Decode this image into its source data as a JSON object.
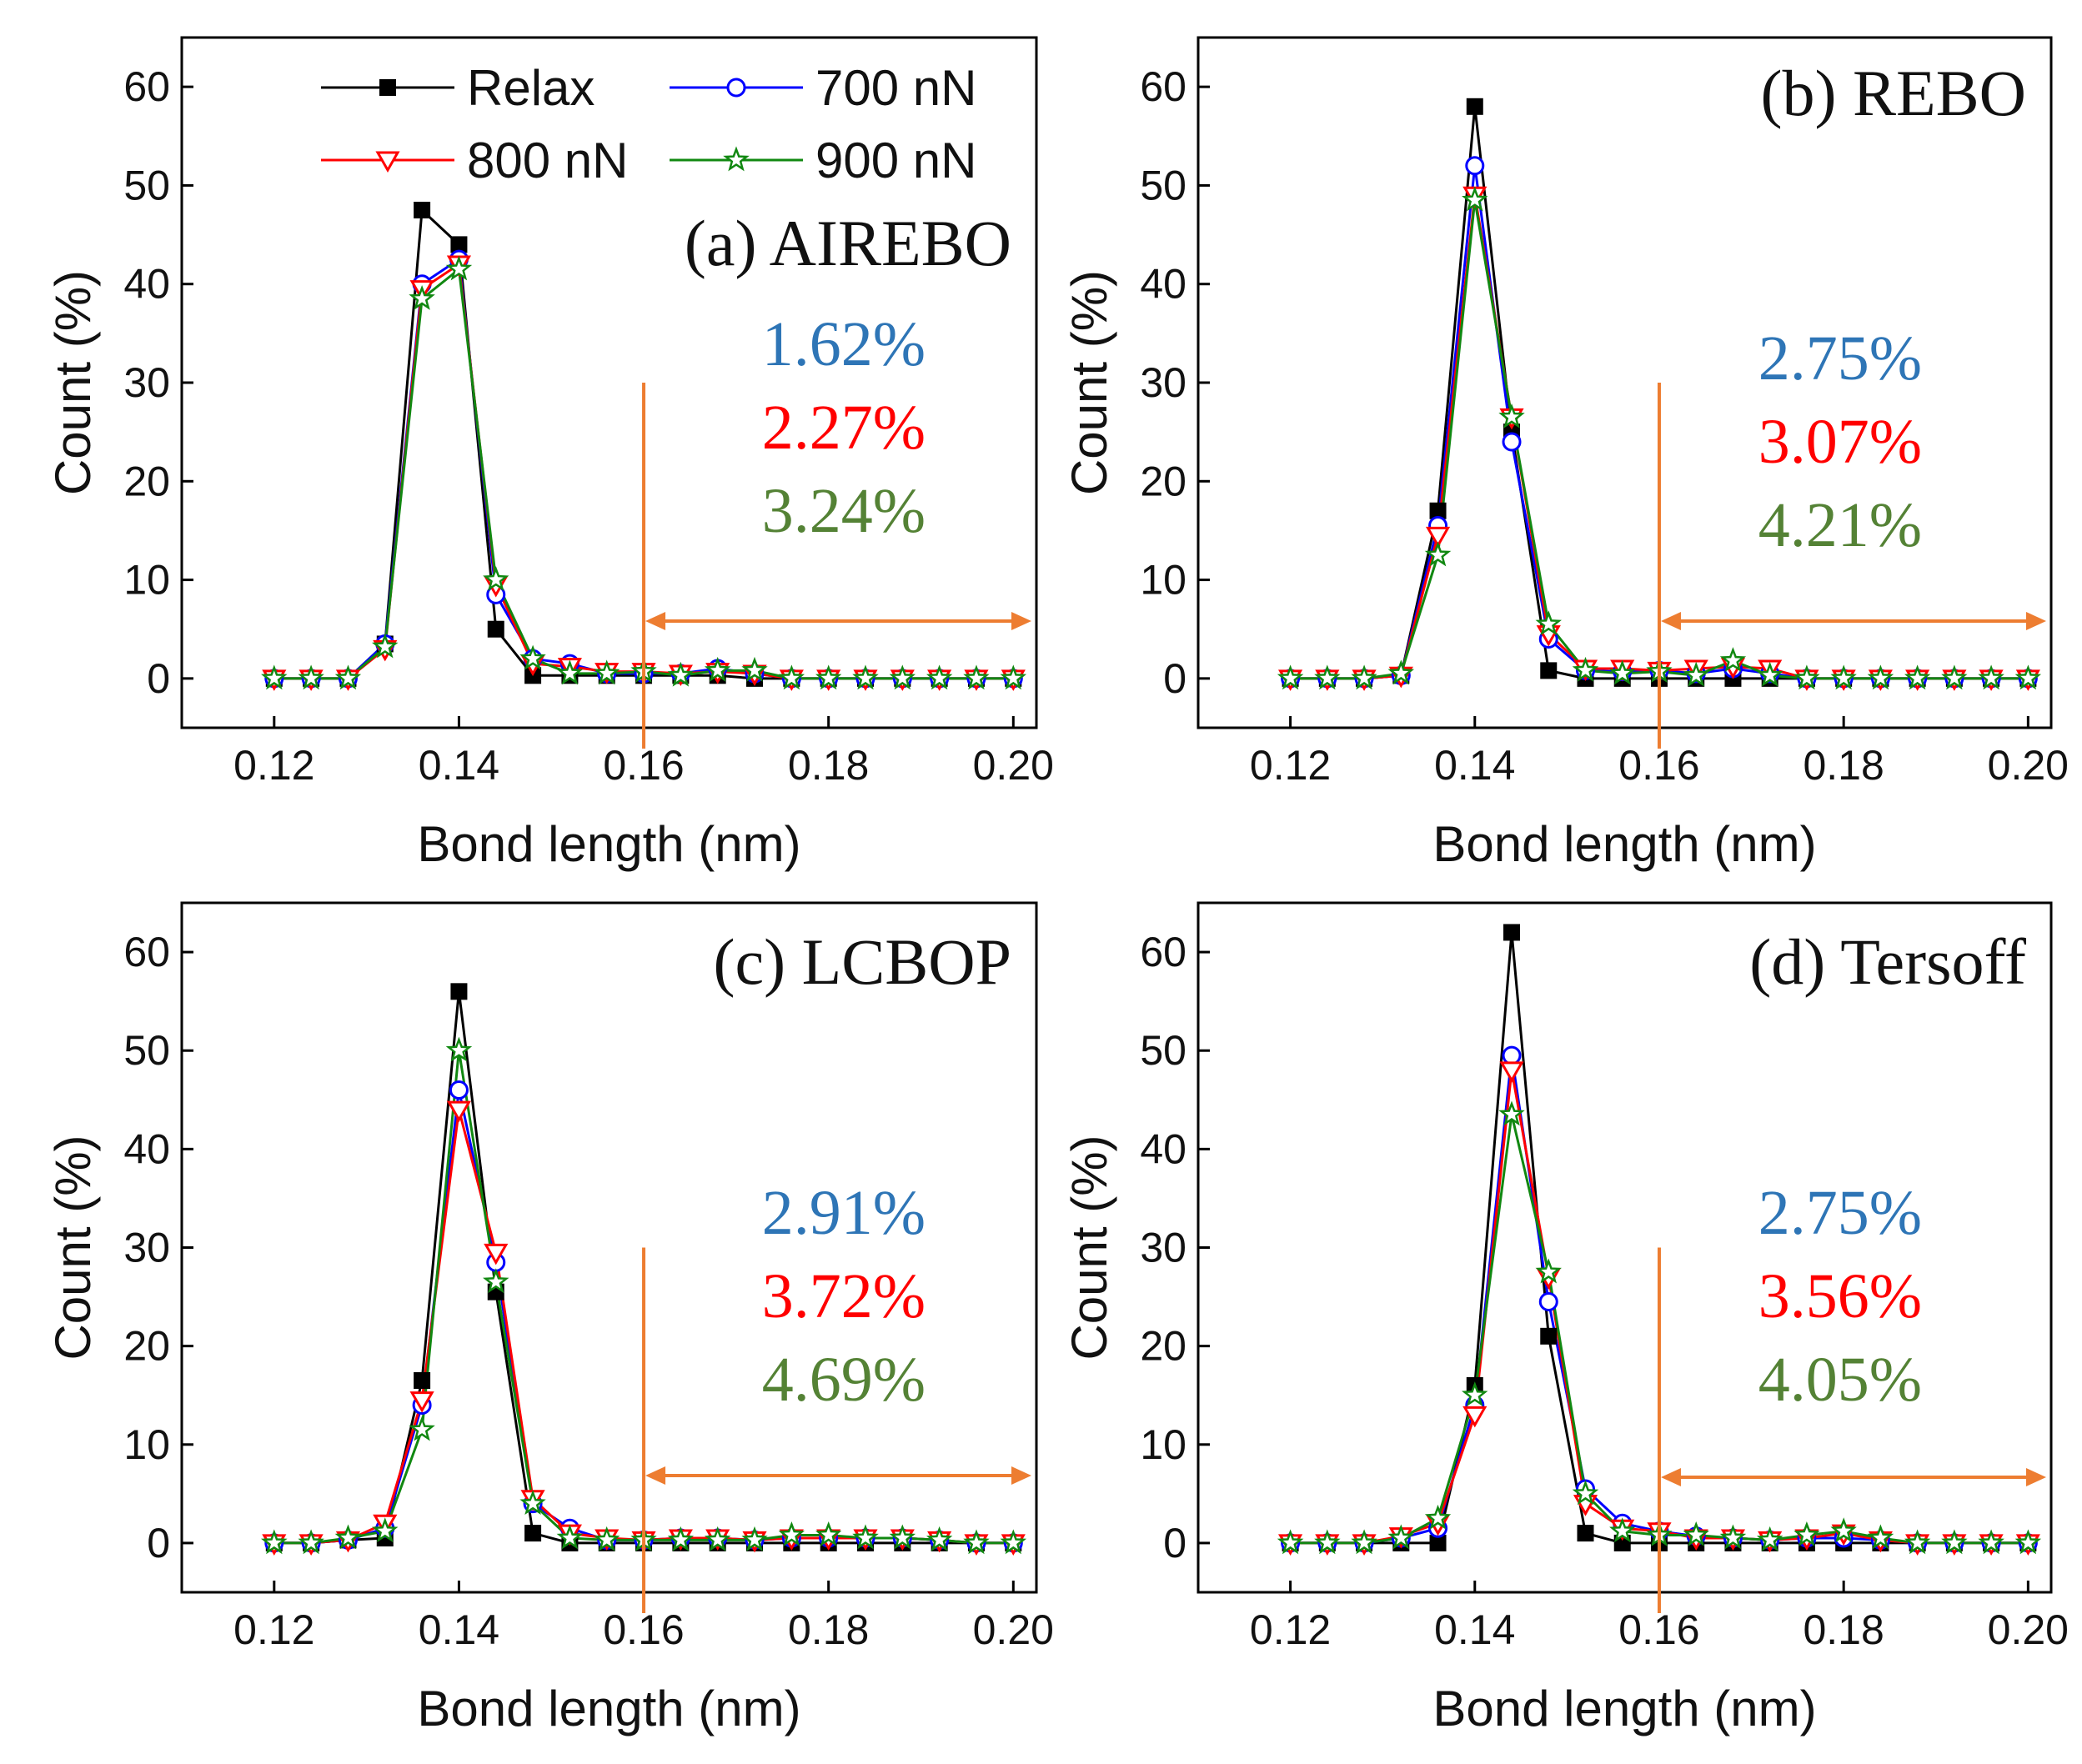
{
  "colors": {
    "relax": "#000000",
    "n700": "#0000ff",
    "n800": "#ff0000",
    "n900": "#118811",
    "threshold": "#ed7d31",
    "pct700": "#2e75b6",
    "pct800": "#ff0000",
    "pct900": "#548235"
  },
  "legend": {
    "relax": "Relax",
    "n700": "700 nN",
    "n800": "800 nN",
    "n900": "900 nN"
  },
  "chart_data": [
    {
      "type": "line",
      "title": "(a) AIREBO",
      "xlabel": "Bond length (nm)",
      "ylabel": "Count (%)",
      "xlim": [
        0.11,
        0.2025
      ],
      "ylim": [
        -5,
        65
      ],
      "xticks": [
        "0.12",
        "0.14",
        "0.16",
        "0.18",
        "0.20"
      ],
      "yticks": [
        "0",
        "10",
        "20",
        "30",
        "40",
        "50",
        "60"
      ],
      "threshold_x": 0.16,
      "percentages": [
        "1.62%",
        "2.27%",
        "3.24%"
      ],
      "x": [
        0.12,
        0.124,
        0.128,
        0.132,
        0.136,
        0.14,
        0.144,
        0.148,
        0.152,
        0.156,
        0.16,
        0.164,
        0.168,
        0.172,
        0.176,
        0.18,
        0.184,
        0.188,
        0.192,
        0.196,
        0.2
      ],
      "series": [
        {
          "name": "Relax",
          "values": [
            0,
            0,
            0,
            3.5,
            47.5,
            44,
            5,
            0.3,
            0.3,
            0.3,
            0.3,
            0.3,
            0.3,
            0,
            0,
            0,
            0,
            0,
            0,
            0,
            0
          ]
        },
        {
          "name": "700 nN",
          "values": [
            0,
            0,
            0,
            3.5,
            40,
            42.5,
            8.5,
            2,
            1.5,
            0.5,
            0.5,
            0.5,
            1,
            0.5,
            0,
            0,
            0,
            0,
            0,
            0,
            0
          ]
        },
        {
          "name": "800 nN",
          "values": [
            0,
            0,
            0,
            3,
            39.5,
            42,
            9.5,
            1.5,
            1.2,
            0.7,
            0.7,
            0.5,
            0.7,
            0.5,
            0,
            0,
            0,
            0,
            0,
            0,
            0
          ]
        },
        {
          "name": "900 nN",
          "values": [
            0,
            0,
            0,
            3.2,
            38.5,
            41.5,
            10,
            2,
            0.5,
            0.5,
            0.7,
            0.3,
            0.8,
            0.8,
            0,
            0,
            0,
            0,
            0,
            0,
            0
          ]
        }
      ]
    },
    {
      "type": "line",
      "title": "(b) REBO",
      "xlabel": "Bond length (nm)",
      "ylabel": "Count (%)",
      "xlim": [
        0.11,
        0.2025
      ],
      "ylim": [
        -5,
        65
      ],
      "xticks": [
        "0.12",
        "0.14",
        "0.16",
        "0.18",
        "0.20"
      ],
      "yticks": [
        "0",
        "10",
        "20",
        "30",
        "40",
        "50",
        "60"
      ],
      "threshold_x": 0.16,
      "percentages": [
        "2.75%",
        "3.07%",
        "4.21%"
      ],
      "x": [
        0.12,
        0.124,
        0.128,
        0.132,
        0.136,
        0.14,
        0.144,
        0.148,
        0.152,
        0.156,
        0.16,
        0.164,
        0.168,
        0.172,
        0.176,
        0.18,
        0.184,
        0.188,
        0.192,
        0.196,
        0.2
      ],
      "series": [
        {
          "name": "Relax",
          "values": [
            0,
            0,
            0,
            0.3,
            17,
            58,
            25,
            0.8,
            0,
            0,
            0,
            0,
            0,
            0,
            0,
            0,
            0,
            0,
            0,
            0,
            0
          ]
        },
        {
          "name": "700 nN",
          "values": [
            0,
            0,
            0,
            0.3,
            15.5,
            52,
            24,
            4,
            0.8,
            0.7,
            0.8,
            0.5,
            1,
            0.5,
            0,
            0,
            0,
            0,
            0,
            0,
            0
          ]
        },
        {
          "name": "800 nN",
          "values": [
            0,
            0,
            0,
            0.3,
            14.5,
            49,
            26.5,
            4.5,
            1,
            1,
            0.8,
            1,
            1.2,
            1,
            0,
            0,
            0,
            0,
            0,
            0,
            0
          ]
        },
        {
          "name": "900 nN",
          "values": [
            0,
            0,
            0,
            0.5,
            12.5,
            48.5,
            26.5,
            5.5,
            0.8,
            0.5,
            0.7,
            0.3,
            1.8,
            0.3,
            0,
            0,
            0,
            0,
            0,
            0,
            0
          ]
        }
      ]
    },
    {
      "type": "line",
      "title": "(c) LCBOP",
      "xlabel": "Bond length (nm)",
      "ylabel": "Count (%)",
      "xlim": [
        0.11,
        0.2025
      ],
      "ylim": [
        -5,
        65
      ],
      "xticks": [
        "0.12",
        "0.14",
        "0.16",
        "0.18",
        "0.20"
      ],
      "yticks": [
        "0",
        "10",
        "20",
        "30",
        "40",
        "50",
        "60"
      ],
      "threshold_x": 0.16,
      "percentages": [
        "2.91%",
        "3.72%",
        "4.69%"
      ],
      "x": [
        0.12,
        0.124,
        0.128,
        0.132,
        0.136,
        0.14,
        0.144,
        0.148,
        0.152,
        0.156,
        0.16,
        0.164,
        0.168,
        0.172,
        0.176,
        0.18,
        0.184,
        0.188,
        0.192,
        0.196,
        0.2
      ],
      "series": [
        {
          "name": "Relax",
          "values": [
            0,
            0,
            0.3,
            0.5,
            16.5,
            56,
            25.5,
            1,
            0,
            0,
            0,
            0,
            0,
            0,
            0,
            0,
            0,
            0,
            0,
            0,
            0
          ]
        },
        {
          "name": "700 nN",
          "values": [
            0,
            0,
            0.3,
            1.5,
            14,
            46,
            28.5,
            4,
            1.5,
            0.3,
            0.3,
            0.5,
            0.5,
            0.3,
            0.5,
            0.5,
            0.5,
            0.5,
            0.3,
            0,
            0
          ]
        },
        {
          "name": "800 nN",
          "values": [
            0,
            0,
            0.3,
            2,
            14.5,
            44,
            29.5,
            4.5,
            1,
            0.5,
            0.3,
            0.5,
            0.5,
            0.3,
            0.5,
            0.5,
            0.5,
            0.5,
            0.3,
            0,
            0
          ]
        },
        {
          "name": "900 nN",
          "values": [
            0,
            0,
            0.5,
            1.2,
            11.5,
            50,
            26.5,
            4,
            0.5,
            0.3,
            0.3,
            0.3,
            0.3,
            0.3,
            0.8,
            0.8,
            0.5,
            0.5,
            0.3,
            0,
            0
          ]
        }
      ]
    },
    {
      "type": "line",
      "title": "(d) Tersoff",
      "xlabel": "Bond length (nm)",
      "ylabel": "Count (%)",
      "xlim": [
        0.11,
        0.2025
      ],
      "ylim": [
        -5,
        65
      ],
      "xticks": [
        "0.12",
        "0.14",
        "0.16",
        "0.18",
        "0.20"
      ],
      "yticks": [
        "0",
        "10",
        "20",
        "30",
        "40",
        "50",
        "60"
      ],
      "threshold_x": 0.16,
      "percentages": [
        "2.75%",
        "3.56%",
        "4.05%"
      ],
      "x": [
        0.12,
        0.124,
        0.128,
        0.132,
        0.136,
        0.14,
        0.144,
        0.148,
        0.152,
        0.156,
        0.16,
        0.164,
        0.168,
        0.172,
        0.176,
        0.18,
        0.184,
        0.188,
        0.192,
        0.196,
        0.2
      ],
      "series": [
        {
          "name": "Relax",
          "values": [
            0,
            0,
            0,
            0,
            0,
            16,
            62,
            21,
            1,
            0,
            0,
            0,
            0,
            0,
            0,
            0,
            0,
            0,
            0,
            0,
            0
          ]
        },
        {
          "name": "700 nN",
          "values": [
            0,
            0,
            0,
            0.5,
            1.5,
            14,
            49.5,
            24.5,
            5.5,
            2,
            1.2,
            0.7,
            0.5,
            0.3,
            0.5,
            0.5,
            0.3,
            0,
            0,
            0,
            0
          ]
        },
        {
          "name": "800 nN",
          "values": [
            0,
            0,
            0,
            0.7,
            2,
            13,
            48,
            27,
            4,
            1.5,
            1.2,
            0.5,
            0.5,
            0.3,
            0.5,
            1,
            0.3,
            0,
            0,
            0,
            0
          ]
        },
        {
          "name": "900 nN",
          "values": [
            0,
            0,
            0,
            0.5,
            2.5,
            15,
            43.5,
            27.5,
            5,
            1.2,
            0.8,
            0.8,
            0.5,
            0.3,
            0.8,
            1.2,
            0.5,
            0,
            0,
            0,
            0
          ]
        }
      ]
    }
  ]
}
